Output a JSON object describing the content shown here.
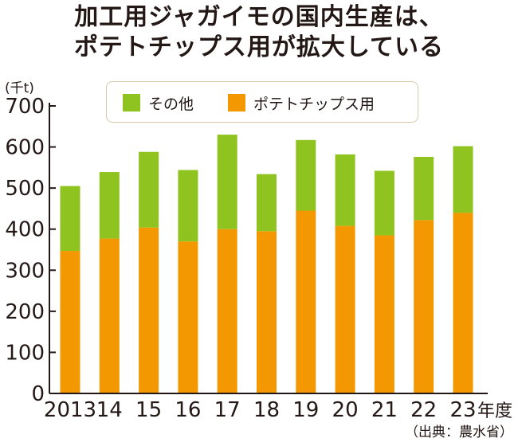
{
  "title_line1": "加工用ジャガイモの国内生産は、",
  "title_line2": "ポテトチップス用が拡大している",
  "unit_label": "(千t)",
  "source_label": "（出典：農水省）",
  "colors": {
    "other": "#8fc31f",
    "chips": "#f39800",
    "axis": "#231815",
    "legend_border": "#d9c9a8"
  },
  "chart_data": {
    "type": "bar",
    "stacked": true,
    "categories": [
      "2013",
      "14",
      "15",
      "16",
      "17",
      "18",
      "19",
      "20",
      "21",
      "22",
      "23"
    ],
    "x_suffix": "年度",
    "series": [
      {
        "name": "ポテトチップス用",
        "color": "#f39800",
        "values": [
          347,
          377,
          404,
          370,
          400,
          395,
          445,
          408,
          385,
          422,
          440
        ]
      },
      {
        "name": "その他",
        "color": "#8fc31f",
        "values": [
          158,
          162,
          184,
          174,
          230,
          139,
          172,
          174,
          157,
          154,
          162
        ]
      }
    ],
    "legend_order": [
      "その他",
      "ポテトチップス用"
    ],
    "ylim": [
      0,
      700
    ],
    "yticks": [
      0,
      100,
      200,
      300,
      400,
      500,
      600,
      700
    ],
    "ylabel": "(千t)",
    "xlabel": "",
    "title": "加工用ジャガイモの国内生産は、ポテトチップス用が拡大している",
    "legend_position": "top"
  }
}
